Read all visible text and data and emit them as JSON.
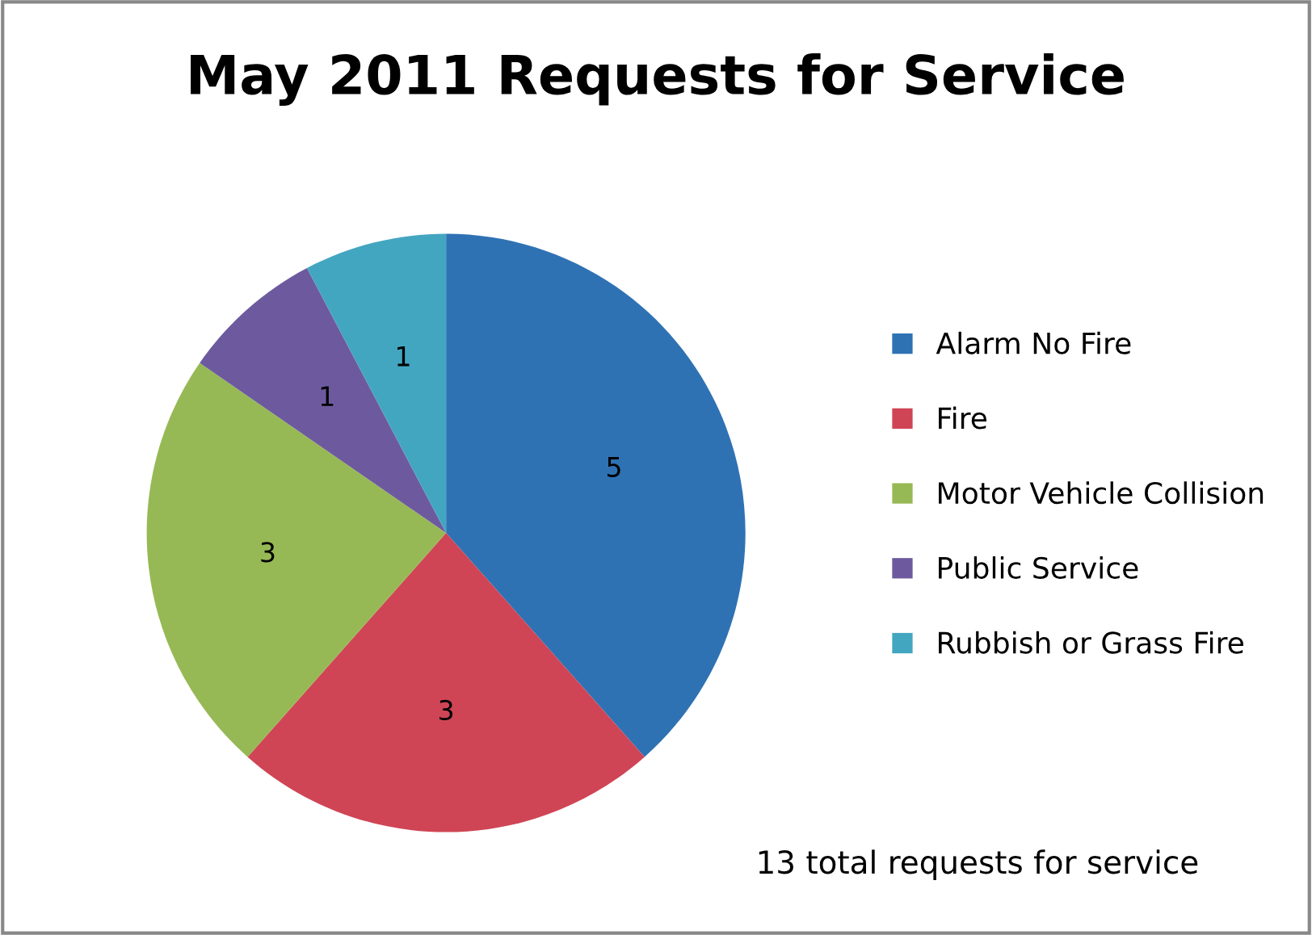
{
  "chart_data": {
    "type": "pie",
    "title": "May 2011 Requests for Service",
    "categories": [
      "Alarm No Fire",
      "Fire",
      "Motor Vehicle Collision",
      "Public Service",
      "Rubbish or Grass Fire"
    ],
    "values": [
      5,
      3,
      3,
      1,
      1
    ],
    "colors": [
      "#2f72b4",
      "#cf4555",
      "#97b955",
      "#6d5a9e",
      "#43a6c0"
    ],
    "data_labels": true,
    "legend": "right",
    "annotations": [
      "13 total requests for service"
    ]
  }
}
